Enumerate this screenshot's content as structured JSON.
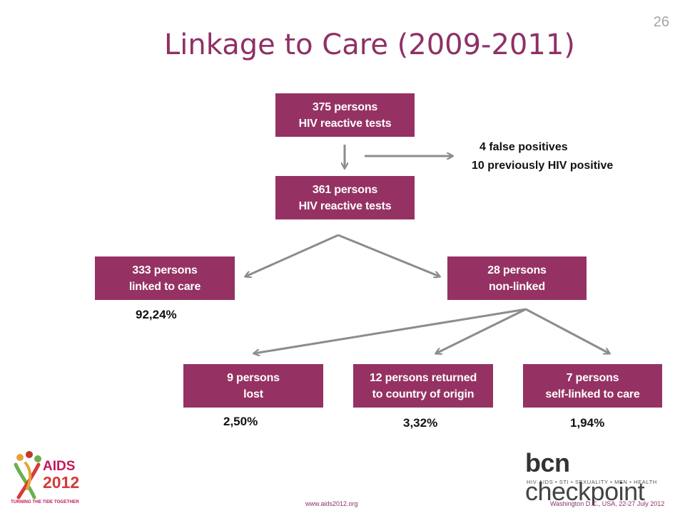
{
  "slide": {
    "number": "26",
    "title": "Linkage to Care (2009-2011)"
  },
  "flow": {
    "top_box": {
      "line1": "375 persons",
      "line2": "HIV reactive tests"
    },
    "excluded": {
      "line1": "4 false positives",
      "line2": "10 previously HIV positive"
    },
    "second_box": {
      "line1": "361 persons",
      "line2": "HIV reactive tests"
    },
    "linked_box": {
      "line1": "333 persons",
      "line2": "linked to care",
      "percent": "92,24%"
    },
    "nonlinked_box": {
      "line1": "28 persons",
      "line2": "non-linked"
    },
    "lost_box": {
      "line1": "9 persons",
      "line2": "lost",
      "percent": "2,50%"
    },
    "returned_box": {
      "line1": "12 persons returned",
      "line2": "to country of origin",
      "percent": "3,32%"
    },
    "selflinked_box": {
      "line1": "7 persons",
      "line2": "self-linked to care",
      "percent": "1,94%"
    }
  },
  "footer": {
    "url": "www.aids2012.org",
    "place": "Washington D.C., USA, 22-27 July 2012"
  },
  "logos": {
    "aids2012": {
      "line1": "AIDS",
      "line2": "2012",
      "tagline": "TURNING THE TIDE TOGETHER"
    },
    "checkpoint": {
      "bold": "bcn",
      "light": " checkpoint",
      "tagline": "HIV·AIDS • STI • SEXUALITY • MEN • HEALTH"
    }
  },
  "colors": {
    "box": "#953263",
    "title": "#8e3166",
    "arrow": "#8c8c8c"
  }
}
